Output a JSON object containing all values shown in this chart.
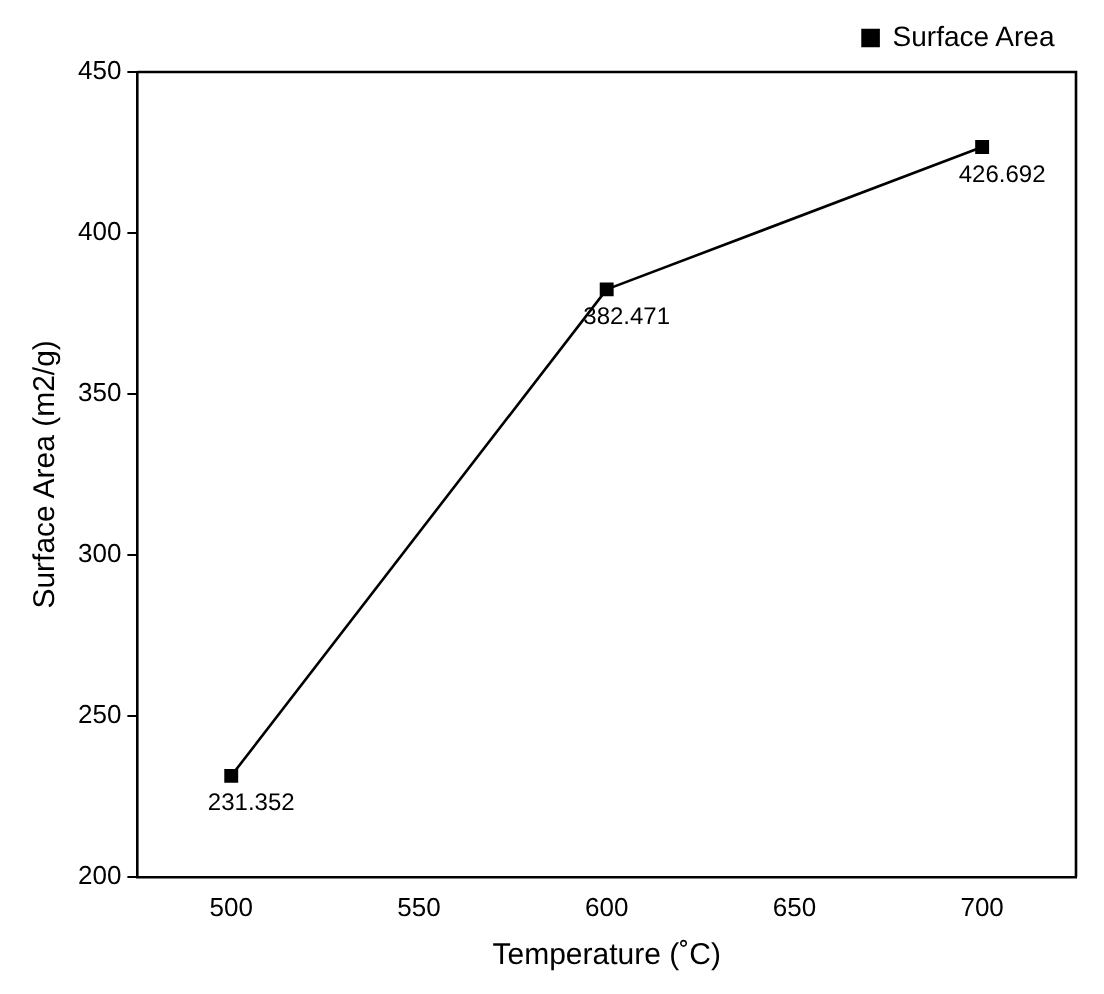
{
  "chart_data": {
    "type": "line",
    "xlabel": "Temperature (˚C)",
    "ylabel": "Surface Area (m2/g)",
    "x": [
      500,
      600,
      700
    ],
    "series": [
      {
        "name": "Surface Area",
        "color": "#000000",
        "values": [
          231.352,
          382.471,
          426.692
        ]
      }
    ],
    "value_labels": [
      "231.352",
      "382.471",
      "426.692"
    ],
    "xlim": [
      475,
      725
    ],
    "xticks": [
      500,
      550,
      600,
      650,
      700
    ],
    "ylim": [
      200,
      450
    ],
    "yticks": [
      200,
      250,
      300,
      350,
      400,
      450
    ],
    "grid": false,
    "legend": "top right",
    "marker": "square",
    "line_style": "solid"
  }
}
